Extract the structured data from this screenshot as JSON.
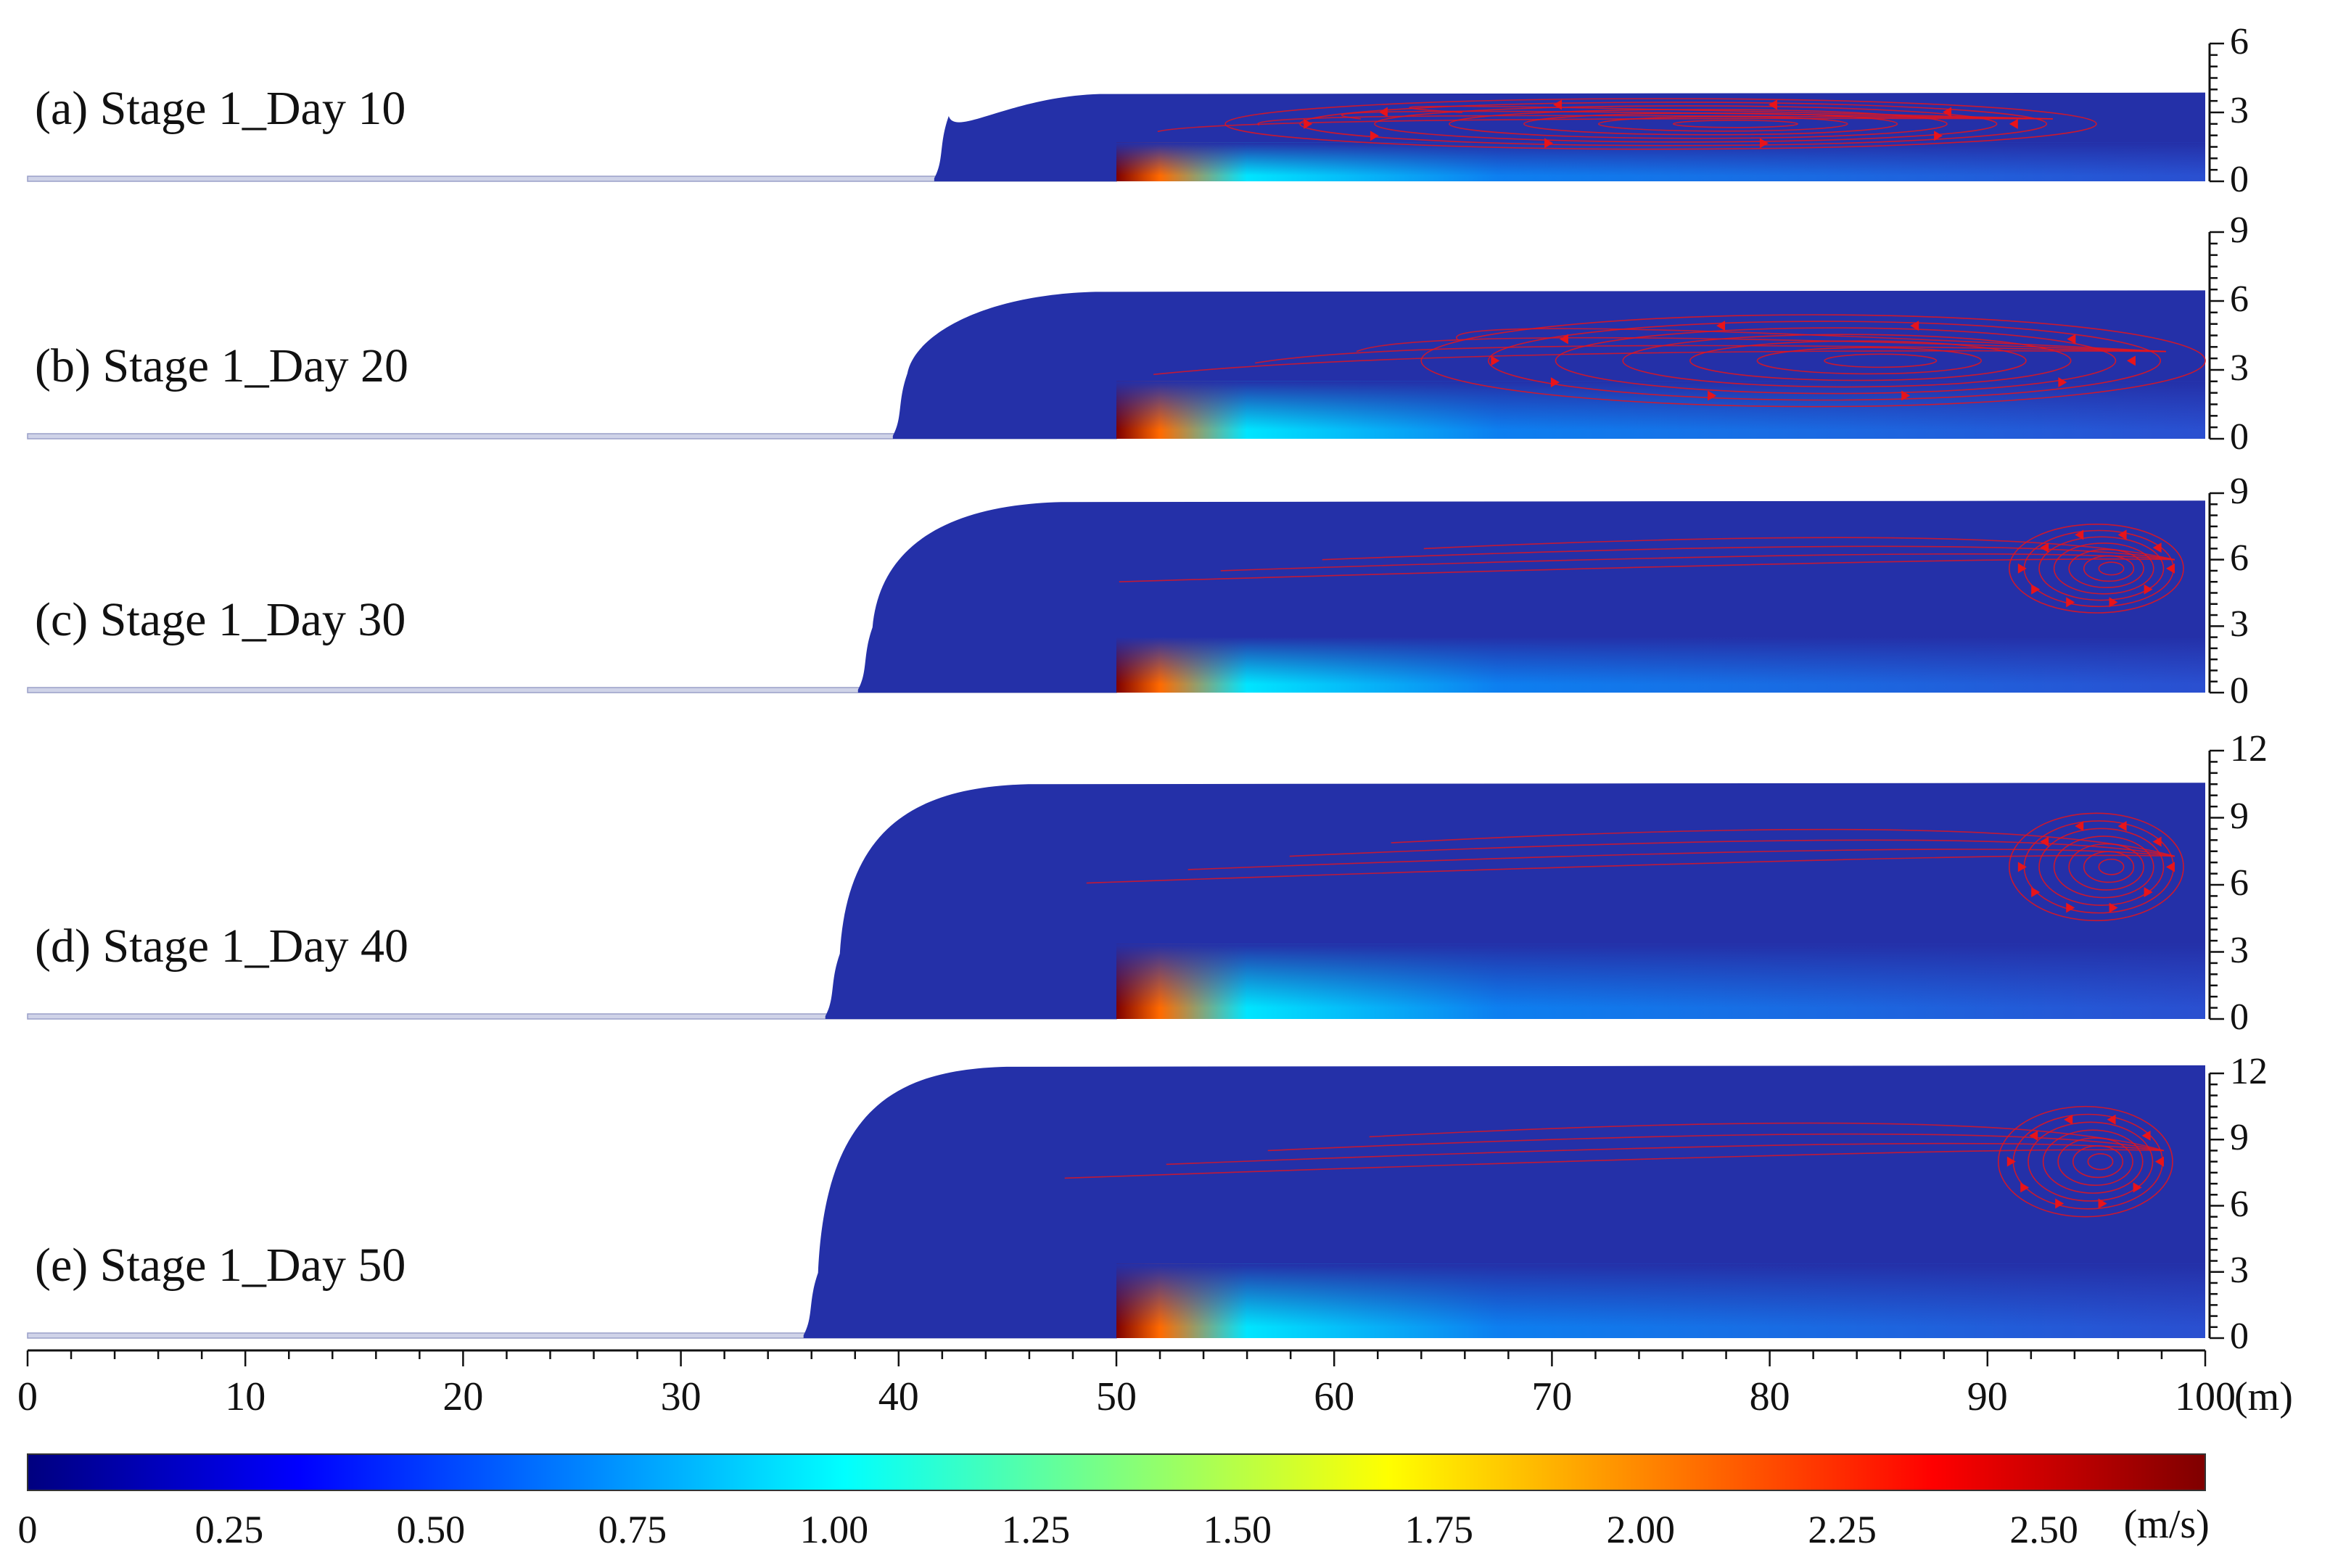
{
  "chart_data": {
    "type": "heatmap",
    "panels": [
      {
        "label": "(a) Stage 1_Day 10",
        "ylim": [
          0,
          6
        ],
        "yticks": [
          0,
          3,
          6
        ],
        "flow_top_y": 3.8,
        "front_x": 42.3,
        "vortex": {
          "cx": 75,
          "cy": 2.5,
          "rx": 20,
          "ry": 1.1
        }
      },
      {
        "label": "(b) Stage 1_Day 20",
        "ylim": [
          0,
          9
        ],
        "yticks": [
          0,
          3,
          6,
          9
        ],
        "flow_top_y": 6.4,
        "front_x": 40.4,
        "vortex": {
          "cx": 82,
          "cy": 3.4,
          "rx": 18,
          "ry": 2.0
        }
      },
      {
        "label": "(c) Stage 1_Day 30",
        "ylim": [
          0,
          9
        ],
        "yticks": [
          0,
          3,
          6,
          9
        ],
        "flow_top_y": 8.6,
        "front_x": 38.8,
        "vortex": {
          "cx": 95,
          "cy": 5.6,
          "rx": 4,
          "ry": 2.0
        }
      },
      {
        "label": "(d) Stage 1_Day 40",
        "ylim": [
          0,
          12
        ],
        "yticks": [
          0,
          3,
          6,
          9,
          12
        ],
        "flow_top_y": 10.5,
        "front_x": 37.3,
        "vortex": {
          "cx": 95,
          "cy": 6.8,
          "rx": 4,
          "ry": 2.4
        }
      },
      {
        "label": "(e) Stage 1_Day 50",
        "ylim": [
          0,
          12
        ],
        "yticks": [
          0,
          3,
          6,
          9,
          12
        ],
        "flow_top_y": 12.3,
        "front_x": 36.3,
        "vortex": {
          "cx": 94.5,
          "cy": 8.0,
          "rx": 4,
          "ry": 2.5
        }
      }
    ],
    "xlim": [
      0,
      100
    ],
    "xticks": [
      "0",
      "10",
      "20",
      "30",
      "40",
      "50",
      "60",
      "70",
      "80",
      "90",
      "100"
    ],
    "x_unit": "(m)",
    "inlet_x_start": 50,
    "colorbar": {
      "min": 0,
      "max": 2.7,
      "ticks": [
        "0",
        "0.25",
        "0.50",
        "0.75",
        "1.00",
        "1.25",
        "1.50",
        "1.75",
        "2.00",
        "2.25",
        "2.50"
      ],
      "tick_values": [
        0,
        0.25,
        0.5,
        0.75,
        1.0,
        1.25,
        1.5,
        1.75,
        2.0,
        2.25,
        2.5
      ],
      "unit": "(m/s)",
      "colors": [
        "#00007f",
        "#0000ff",
        "#007fff",
        "#00ffff",
        "#7fff7f",
        "#ffff00",
        "#ff7f00",
        "#ff0000",
        "#7f0000"
      ]
    },
    "background_color": "#2430a8",
    "streamline_color": "#e8141a"
  }
}
